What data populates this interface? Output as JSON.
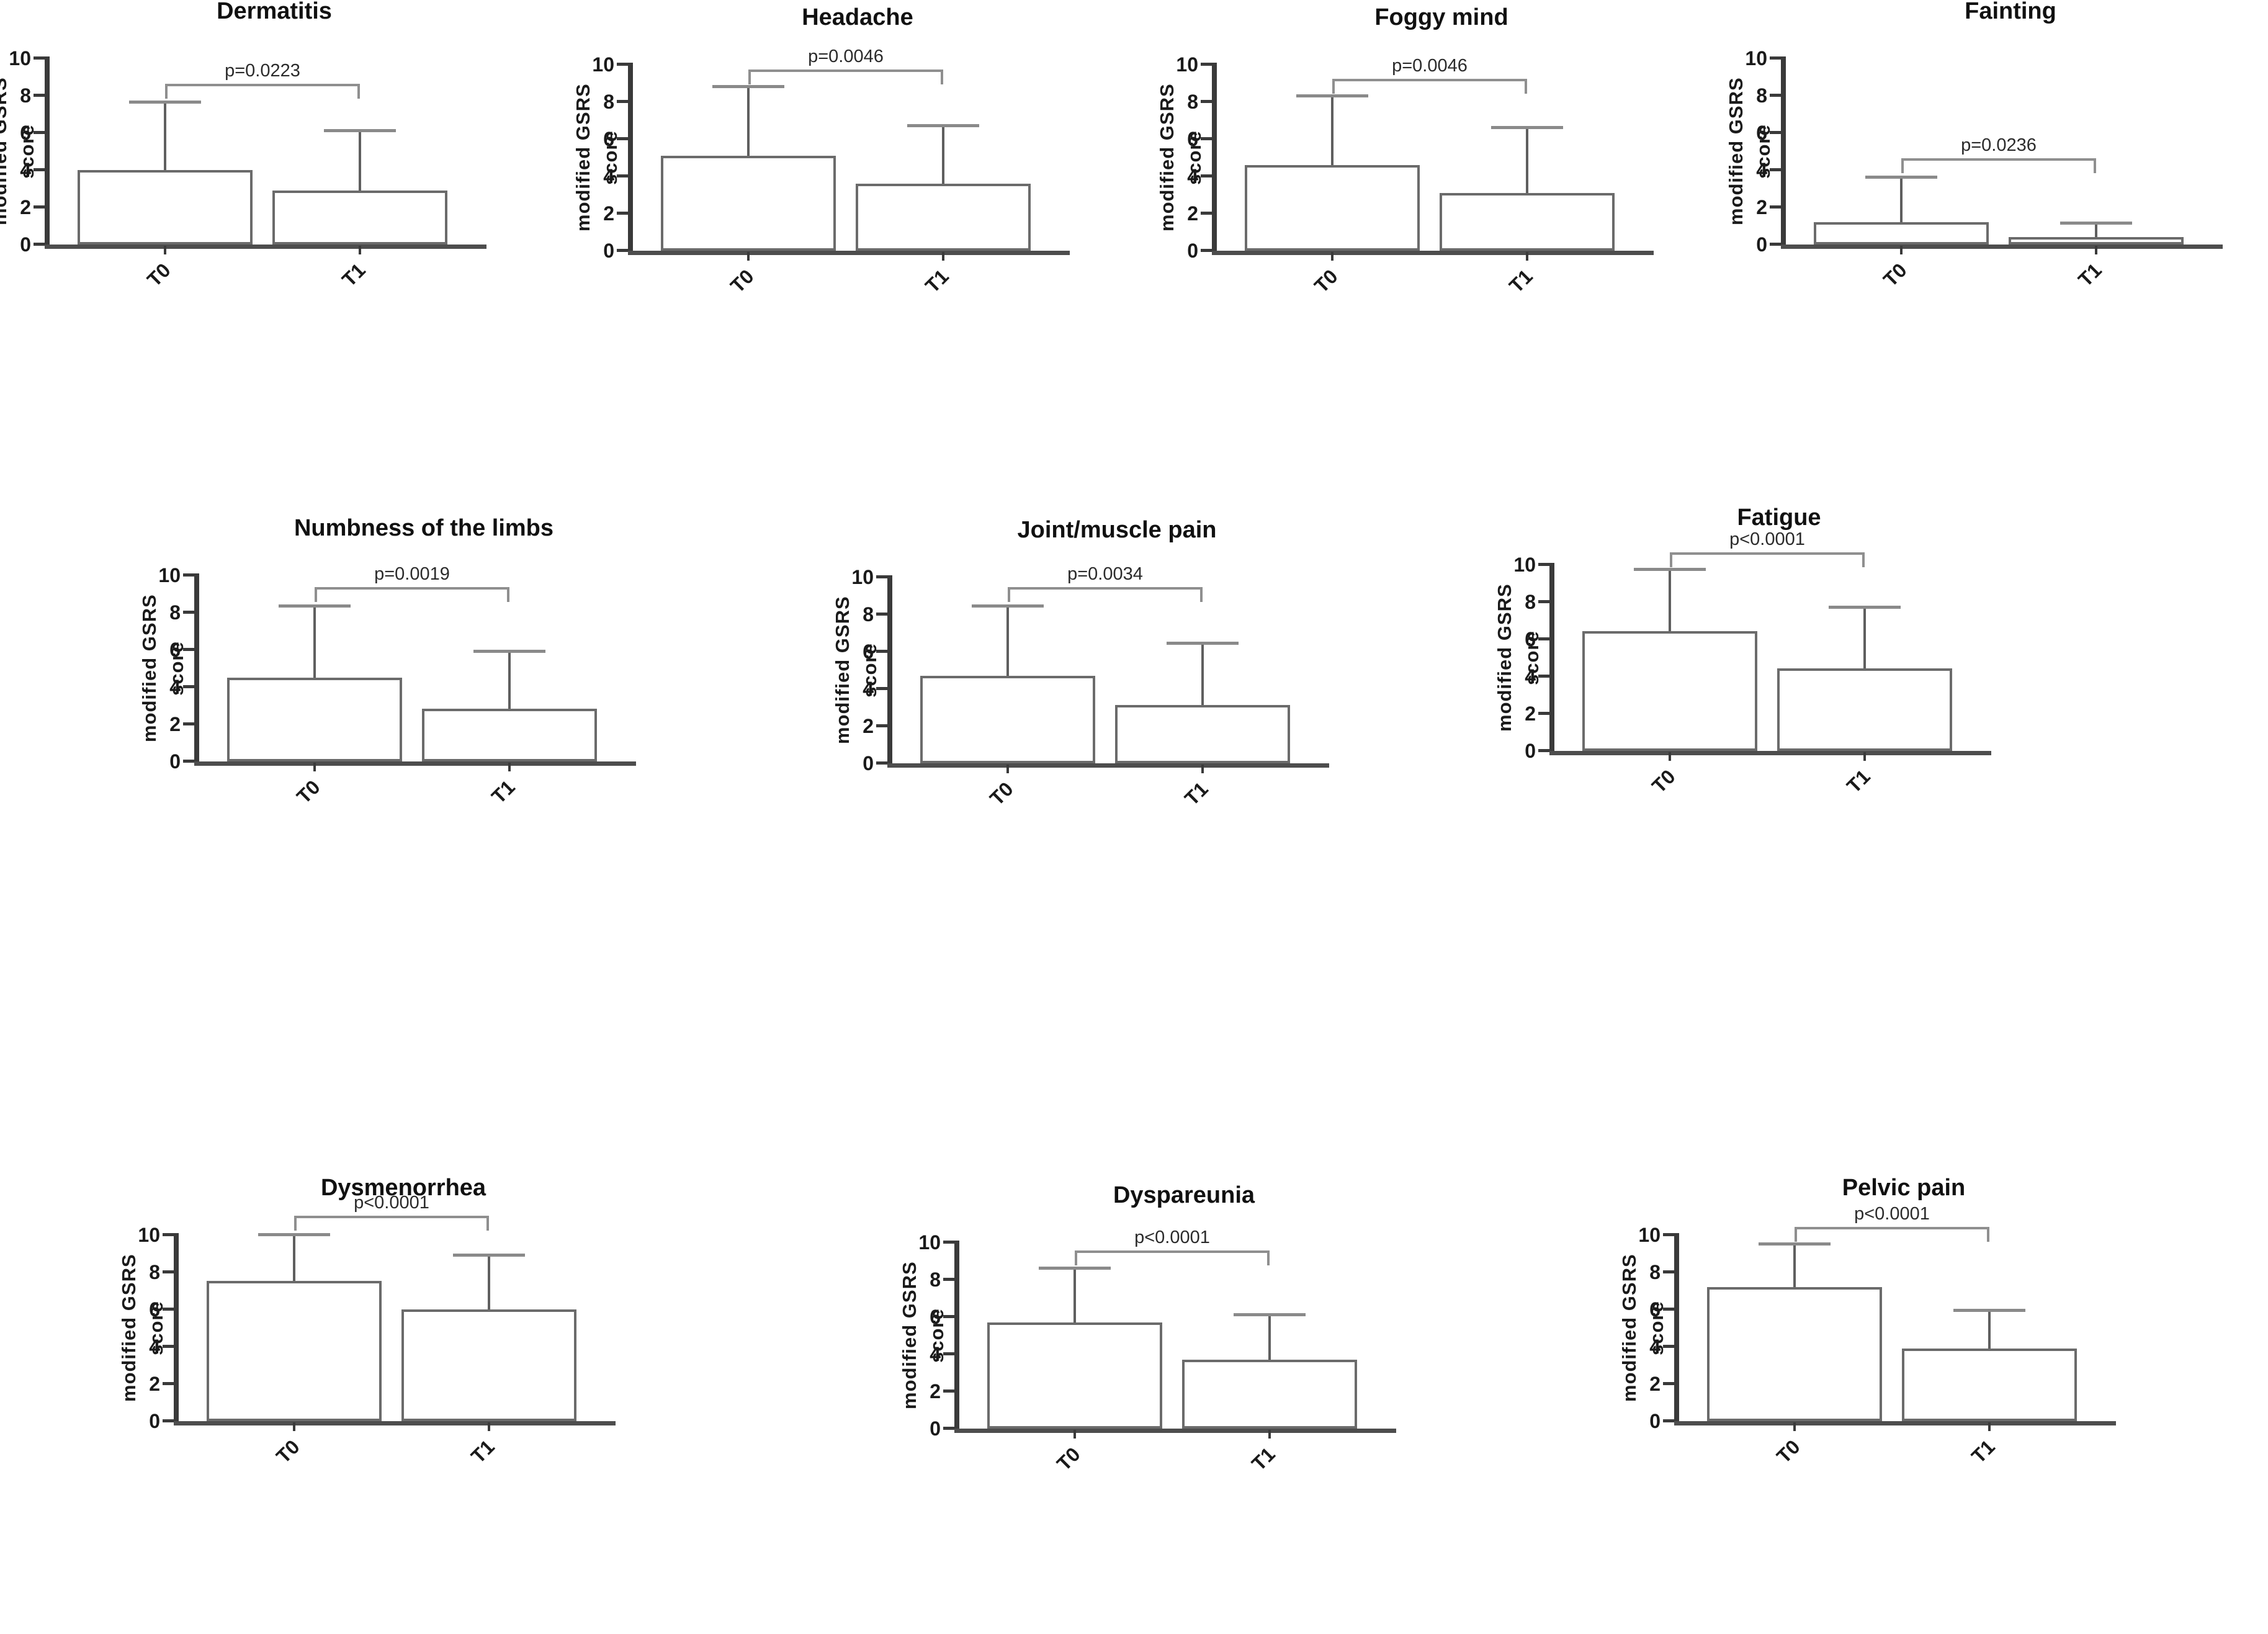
{
  "figure": {
    "ylabel": "modified GSRS score",
    "categories": [
      "T0",
      "T1"
    ],
    "ylim": [
      0,
      10
    ],
    "yticks": [
      0,
      2,
      4,
      6,
      8,
      10
    ],
    "colors": {
      "bar_fill": "#ffffff",
      "bar_border": "#6b6b6b",
      "axis": "#3a3a3a",
      "error_line": "#5f5f5f",
      "error_cap": "#8a8a8a",
      "bracket": "#8f8f8f",
      "text": "#1a1a1a"
    }
  },
  "chart_data": [
    {
      "type": "bar",
      "title": "Dermatitis",
      "categories": [
        "T0",
        "T1"
      ],
      "values": [
        4.0,
        2.9
      ],
      "errors_upper": [
        7.65,
        6.1
      ],
      "p_label": "p=0.0223",
      "bracket_y": 8.5,
      "xlabel": "",
      "ylabel": "modified GSRS score",
      "ylim": [
        0,
        10
      ],
      "position": {
        "left": -8,
        "top": -5
      }
    },
    {
      "type": "bar",
      "title": "Headache",
      "categories": [
        "T0",
        "T1"
      ],
      "values": [
        5.1,
        3.6
      ],
      "errors_upper": [
        8.8,
        6.7
      ],
      "p_label": "p=0.0046",
      "bracket_y": 9.6,
      "xlabel": "",
      "ylabel": "modified GSRS score",
      "ylim": [
        0,
        10
      ],
      "position": {
        "left": 932,
        "top": 5
      }
    },
    {
      "type": "bar",
      "title": "Foggy mind",
      "categories": [
        "T0",
        "T1"
      ],
      "values": [
        4.6,
        3.1
      ],
      "errors_upper": [
        8.3,
        6.6
      ],
      "p_label": "p=0.0046",
      "bracket_y": 9.1,
      "xlabel": "",
      "ylabel": "modified GSRS score",
      "ylim": [
        0,
        10
      ],
      "position": {
        "left": 1873,
        "top": 5
      }
    },
    {
      "type": "bar",
      "title": "Fainting",
      "categories": [
        "T0",
        "T1"
      ],
      "values": [
        1.2,
        0.4
      ],
      "errors_upper": [
        3.6,
        1.15
      ],
      "p_label": "p=0.0236",
      "bracket_y": 4.5,
      "xlabel": "",
      "ylabel": "modified GSRS score",
      "ylim": [
        0,
        10
      ],
      "position": {
        "left": 2790,
        "top": -5
      }
    },
    {
      "type": "bar",
      "title": "Numbness of the limbs",
      "categories": [
        "T0",
        "T1"
      ],
      "values": [
        4.5,
        2.85
      ],
      "errors_upper": [
        8.35,
        5.9
      ],
      "p_label": "p=0.0019",
      "bracket_y": 9.25,
      "xlabel": "",
      "ylabel": "modified GSRS score",
      "ylim": [
        0,
        10
      ],
      "position": {
        "left": 233,
        "top": 828
      }
    },
    {
      "type": "bar",
      "title": "Joint/muscle pain",
      "categories": [
        "T0",
        "T1"
      ],
      "values": [
        4.7,
        3.15
      ],
      "errors_upper": [
        8.45,
        6.45
      ],
      "p_label": "p=0.0034",
      "bracket_y": 9.35,
      "xlabel": "",
      "ylabel": "modified GSRS score",
      "ylim": [
        0,
        10
      ],
      "position": {
        "left": 1350,
        "top": 831
      }
    },
    {
      "type": "bar",
      "title": "Fatigue",
      "categories": [
        "T0",
        "T1"
      ],
      "values": [
        6.45,
        4.45
      ],
      "errors_upper": [
        9.75,
        7.7
      ],
      "p_label": "p<0.0001",
      "bracket_y": 10.55,
      "xlabel": "",
      "ylabel": "modified GSRS score",
      "ylim": [
        0,
        10
      ],
      "position": {
        "left": 2417,
        "top": 811
      }
    },
    {
      "type": "bar",
      "title": "Dysmenorrhea",
      "categories": [
        "T0",
        "T1"
      ],
      "values": [
        7.55,
        6.0
      ],
      "errors_upper": [
        10.0,
        8.9
      ],
      "p_label": "p<0.0001",
      "bracket_y": 10.9,
      "xlabel": "",
      "ylabel": "modified GSRS score",
      "ylim": [
        0,
        10
      ],
      "position": {
        "left": 200,
        "top": 1891
      }
    },
    {
      "type": "bar",
      "title": "Dyspareunia",
      "categories": [
        "T0",
        "T1"
      ],
      "values": [
        5.7,
        3.7
      ],
      "errors_upper": [
        8.6,
        6.1
      ],
      "p_label": "p<0.0001",
      "bracket_y": 9.45,
      "xlabel": "",
      "ylabel": "modified GSRS score",
      "ylim": [
        0,
        10
      ],
      "position": {
        "left": 1458,
        "top": 1903
      }
    },
    {
      "type": "bar",
      "title": "Pelvic pain",
      "categories": [
        "T0",
        "T1"
      ],
      "values": [
        7.2,
        3.9
      ],
      "errors_upper": [
        9.5,
        5.95
      ],
      "p_label": "p<0.0001",
      "bracket_y": 10.3,
      "xlabel": "",
      "ylabel": "modified GSRS score",
      "ylim": [
        0,
        10
      ],
      "position": {
        "left": 2618,
        "top": 1891
      }
    }
  ]
}
